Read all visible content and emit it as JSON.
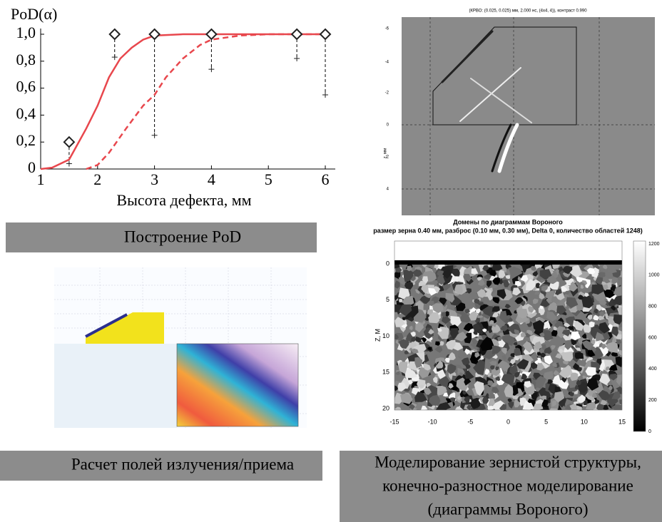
{
  "chart_data": {
    "type": "line",
    "y_label": "PoD(α)",
    "x_label": "Высота дефекта, мм",
    "xlim": [
      1,
      6
    ],
    "xticks": [
      1,
      2,
      3,
      4,
      5,
      6
    ],
    "ylim": [
      0,
      1
    ],
    "yticks": [
      0,
      {
        "value": 0.2,
        "label": "0,2"
      },
      {
        "value": 0.4,
        "label": "0,4"
      },
      {
        "value": 0.6,
        "label": "0,6"
      },
      {
        "value": 0.8,
        "label": "0,8"
      },
      {
        "value": 1,
        "label": "1,0"
      }
    ],
    "drop_lines": true,
    "series": [
      {
        "color": "#e8474d",
        "line_style": "solid",
        "x": [
          1,
          1.2,
          1.5,
          1.8,
          2,
          2.2,
          2.4,
          2.6,
          2.8,
          3,
          3.5,
          4,
          5,
          6
        ],
        "values": [
          0,
          0.01,
          0.07,
          0.3,
          0.47,
          0.68,
          0.82,
          0.9,
          0.96,
          0.99,
          1,
          1,
          1,
          1
        ]
      },
      {
        "color": "#e8474d",
        "line_style": "dashed",
        "x": [
          1.8,
          2,
          2.2,
          2.5,
          2.8,
          3,
          3.2,
          3.5,
          3.8,
          4,
          4.5,
          5,
          6
        ],
        "values": [
          0,
          0.03,
          0.12,
          0.3,
          0.47,
          0.55,
          0.68,
          0.82,
          0.92,
          0.96,
          0.99,
          1,
          1
        ]
      },
      {
        "color": "#222222",
        "marker": "diamond",
        "x": [
          1.5,
          2.3,
          3,
          4,
          5.5,
          6
        ],
        "values": [
          0.2,
          1,
          1,
          1,
          1,
          1
        ]
      },
      {
        "color": "#222222",
        "marker": "plus",
        "x": [
          1.5,
          2.3,
          3,
          4,
          5.5,
          6
        ],
        "values": [
          0.04,
          0.83,
          0.25,
          0.74,
          0.82,
          0.55
        ]
      }
    ]
  },
  "panels": {
    "wave": {
      "title": "(КРВО: (0.025, 0.025) мм, 2.000 нс, (4x4, 4)), контраст 0.990",
      "y_label": "z, мм",
      "yticks": [
        "-6",
        "-4",
        "-2",
        "0",
        "2",
        "4"
      ]
    },
    "voronoi": {
      "title": "Домены по диаграммам Вороного",
      "subtitle": "размер зерна 0.40 мм, разброс (0.10 мм, 0.30 мм), Delta 0, количество областей 1248)",
      "y_label": "Z, M",
      "xticks": [
        "-15",
        "-10",
        "-5",
        "0",
        "5",
        "10",
        "15"
      ],
      "yticks": [
        "0",
        "5",
        "10",
        "15",
        "20"
      ],
      "colorbar_ticks": [
        "0",
        "200",
        "400",
        "600",
        "800",
        "1000",
        "1200"
      ]
    }
  },
  "captions": {
    "pod": "Построение PoD",
    "field": "Расчет полей излучения/приема",
    "voronoi": [
      "Моделирование зернистой структуры,",
      "конечно-разностное моделирование",
      "(диаграммы Вороного)"
    ]
  }
}
